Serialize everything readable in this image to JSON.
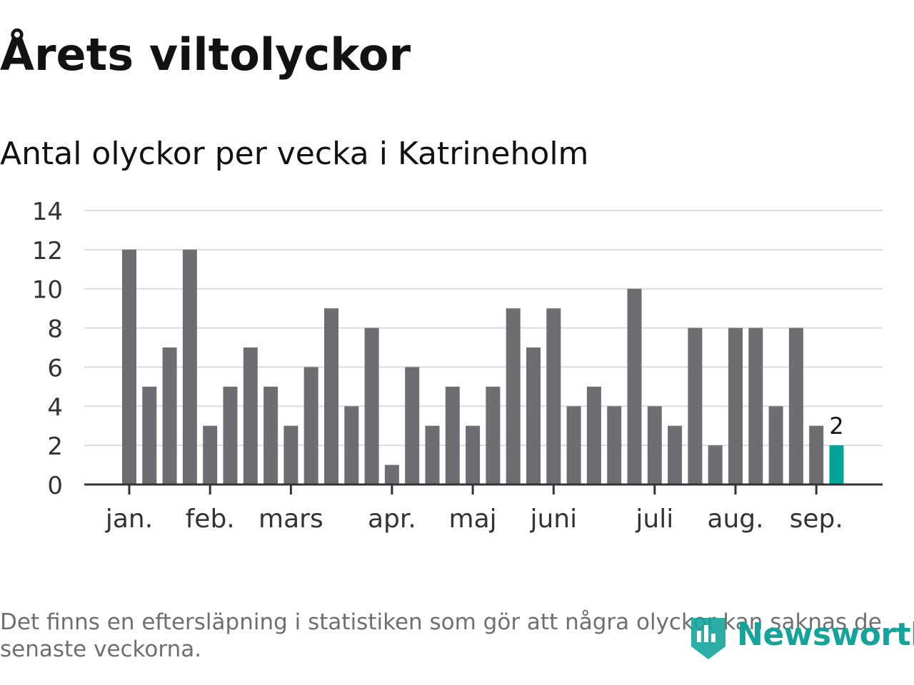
{
  "header": {
    "title": "Årets viltolyckor",
    "subtitle": "Antal olyckor per vecka i Katrineholm"
  },
  "colors": {
    "bar": "#6d6d72",
    "highlight": "#00a398",
    "grid": "#dcdcdc",
    "axis": "#333333",
    "tick_text": "#333333",
    "brand": "#15a49c"
  },
  "footer": {
    "note": "Det finns en eftersläpning i statistiken som gör att några olyckor kan saknas de senaste veckorna.",
    "brand": "Newsworthy",
    "brand_icon": "newsworthy-logo-icon"
  },
  "chart_data": {
    "type": "bar",
    "title": "Årets viltolyckor",
    "subtitle": "Antal olyckor per vecka i Katrineholm",
    "xlabel": "",
    "ylabel": "",
    "ylim": [
      0,
      14
    ],
    "yticks": [
      0,
      2,
      4,
      6,
      8,
      10,
      12,
      14
    ],
    "grid": true,
    "series": [
      {
        "values": [
          12,
          5,
          7,
          12,
          3,
          5,
          7,
          5,
          3,
          6,
          9,
          4,
          8,
          1,
          6,
          3,
          5,
          3,
          5,
          9,
          7,
          9,
          4,
          5,
          4,
          10,
          4,
          3,
          8,
          2,
          8,
          8,
          4,
          8,
          3,
          2
        ]
      }
    ],
    "highlight_index": 35,
    "annotations": [
      {
        "index": 35,
        "text": "2"
      }
    ],
    "month_ticks": [
      {
        "label": "jan.",
        "week": 1
      },
      {
        "label": "feb.",
        "week": 5
      },
      {
        "label": "mars",
        "week": 9
      },
      {
        "label": "apr.",
        "week": 14
      },
      {
        "label": "maj",
        "week": 18
      },
      {
        "label": "juni",
        "week": 22
      },
      {
        "label": "juli",
        "week": 27
      },
      {
        "label": "aug.",
        "week": 31
      },
      {
        "label": "sep.",
        "week": 35
      }
    ]
  }
}
